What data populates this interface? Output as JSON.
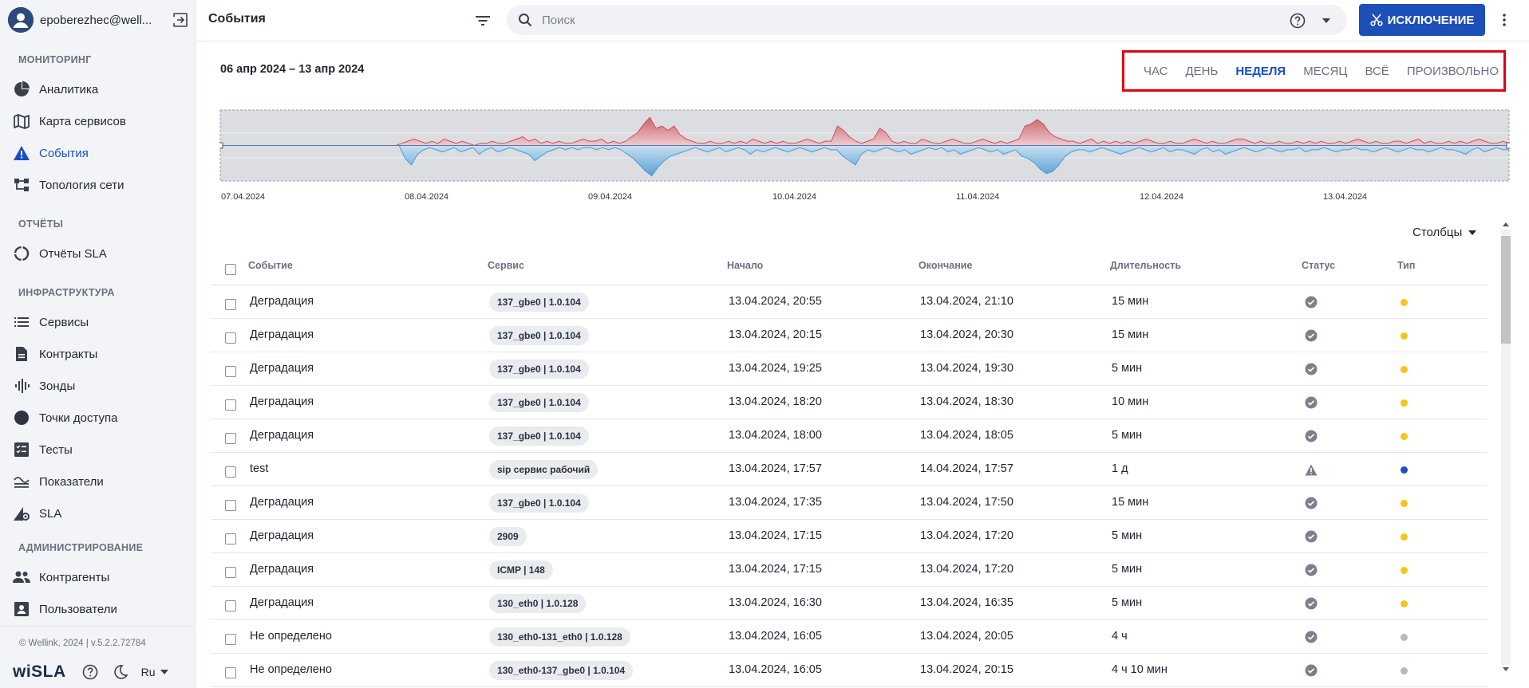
{
  "user": {
    "name": "epoberezhec@well..."
  },
  "sidebar": {
    "sections": [
      {
        "title": "МОНИТОРИНГ"
      },
      {
        "title": "ОТЧЁТЫ"
      },
      {
        "title": "ИНФРАСТРУКТУРА"
      },
      {
        "title": "АДМИНИСТРИРОВАНИЕ"
      }
    ],
    "items": [
      {
        "label": "Аналитика",
        "icon": "pie-chart-icon"
      },
      {
        "label": "Карта сервисов",
        "icon": "map-icon"
      },
      {
        "label": "События",
        "icon": "warning-icon",
        "active": true
      },
      {
        "label": "Топология сети",
        "icon": "topology-icon"
      },
      {
        "label": "Отчёты SLA",
        "icon": "report-circle-icon"
      },
      {
        "label": "Сервисы",
        "icon": "list-icon"
      },
      {
        "label": "Контракты",
        "icon": "document-icon"
      },
      {
        "label": "Зонды",
        "icon": "probe-icon"
      },
      {
        "label": "Точки доступа",
        "icon": "access-point-icon"
      },
      {
        "label": "Тесты",
        "icon": "checklist-icon"
      },
      {
        "label": "Показатели",
        "icon": "metrics-icon"
      },
      {
        "label": "SLA",
        "icon": "sla-icon"
      },
      {
        "label": "Контрагенты",
        "icon": "people-icon"
      },
      {
        "label": "Пользователи",
        "icon": "contact-icon"
      }
    ],
    "copyright": "© Wellink, 2024 | v.5.2.2.72784",
    "logo": "wiSLA",
    "language": "Ru"
  },
  "header": {
    "title": "События",
    "search_placeholder": "Поиск",
    "exclusion_label": "ИСКЛЮЧЕНИЕ"
  },
  "date_range": "06 апр 2024 – 13 апр 2024",
  "periods": [
    "ЧАС",
    "ДЕНЬ",
    "НЕДЕЛЯ",
    "МЕСЯЦ",
    "ВСЁ",
    "ПРОИЗВОЛЬНО"
  ],
  "active_period": "НЕДЕЛЯ",
  "chart_data": {
    "type": "area",
    "x_ticks": [
      "07.04.2024",
      "08.04.2024",
      "09.04.2024",
      "10.04.2024",
      "11.04.2024",
      "12.04.2024",
      "13.04.2024"
    ],
    "series": [
      {
        "color": "#c8505a",
        "values": [
          0,
          0,
          0,
          0,
          0,
          0,
          0,
          0,
          0,
          0,
          0,
          0,
          0,
          0,
          0,
          0,
          0,
          0,
          0,
          0,
          0,
          0,
          0,
          0,
          0,
          0,
          0,
          0,
          0,
          0,
          1,
          2,
          3,
          2,
          1,
          2,
          1,
          3,
          2,
          1,
          2,
          1,
          0,
          1,
          1,
          2,
          1,
          1,
          2,
          3,
          4,
          2,
          3,
          1,
          2,
          1,
          2,
          1,
          1,
          2,
          3,
          2,
          2,
          3,
          1,
          2,
          1,
          2,
          4,
          6,
          10,
          13,
          8,
          9,
          7,
          9,
          5,
          3,
          2,
          1,
          1,
          2,
          1,
          1,
          2,
          1,
          2,
          1,
          3,
          2,
          1,
          2,
          1,
          2,
          1,
          1,
          2,
          3,
          2,
          1,
          2,
          2,
          9,
          7,
          4,
          2,
          1,
          2,
          3,
          8,
          6,
          2,
          1,
          2,
          1,
          1,
          3,
          2,
          1,
          1,
          2,
          3,
          2,
          1,
          1,
          2,
          3,
          2,
          1,
          2,
          1,
          2,
          3,
          9,
          10,
          12,
          10,
          6,
          4,
          3,
          2,
          2,
          1,
          2,
          3,
          1,
          2,
          1,
          2,
          1,
          2,
          1,
          2,
          3,
          2,
          1,
          1,
          2,
          1,
          1,
          2,
          3,
          2,
          1,
          2,
          1,
          1,
          2,
          3,
          3,
          2,
          1,
          2,
          1,
          1,
          2,
          1,
          1,
          2,
          1,
          2,
          1,
          2,
          1,
          1,
          2,
          1,
          2,
          3,
          2,
          1,
          2,
          1,
          1,
          2,
          2,
          1,
          2,
          3,
          1,
          2,
          1,
          1,
          2,
          1,
          2,
          1,
          2,
          3,
          2,
          1,
          1,
          2,
          1
        ]
      },
      {
        "color": "#4a9ad4",
        "values": [
          0,
          0,
          0,
          0,
          0,
          0,
          0,
          0,
          0,
          0,
          0,
          0,
          0,
          0,
          0,
          0,
          0,
          0,
          0,
          0,
          0,
          0,
          0,
          0,
          0,
          0,
          0,
          0,
          0,
          0,
          6,
          9,
          4,
          2,
          1,
          2,
          3,
          2,
          1,
          3,
          2,
          1,
          4,
          2,
          1,
          3,
          2,
          1,
          2,
          3,
          4,
          7,
          5,
          3,
          2,
          1,
          2,
          1,
          2,
          1,
          1,
          2,
          1,
          2,
          1,
          2,
          4,
          6,
          9,
          12,
          14,
          10,
          7,
          5,
          4,
          3,
          2,
          1,
          2,
          3,
          2,
          1,
          3,
          2,
          1,
          2,
          4,
          2,
          3,
          2,
          1,
          2,
          3,
          2,
          1,
          2,
          3,
          2,
          1,
          2,
          2,
          5,
          7,
          9,
          4,
          2,
          3,
          2,
          1,
          2,
          3,
          2,
          4,
          3,
          2,
          1,
          2,
          1,
          3,
          2,
          4,
          3,
          2,
          1,
          2,
          3,
          2,
          4,
          3,
          2,
          5,
          6,
          8,
          11,
          13,
          12,
          9,
          5,
          3,
          2,
          2,
          3,
          2,
          1,
          2,
          3,
          4,
          3,
          2,
          1,
          2,
          3,
          2,
          1,
          3,
          2,
          2,
          3,
          4,
          2,
          1,
          3,
          2,
          4,
          3,
          2,
          1,
          2,
          3,
          2,
          1,
          2,
          3,
          2,
          2,
          1,
          3,
          2,
          2,
          1,
          2,
          3,
          2,
          2,
          1,
          2,
          2,
          3,
          2,
          1,
          2,
          3,
          2,
          1,
          2,
          2,
          3,
          2,
          1,
          2,
          2,
          3,
          4,
          2,
          1,
          3,
          2,
          1,
          2,
          2
        ]
      }
    ]
  },
  "table": {
    "columns_label": "Столбцы",
    "headers": [
      "Событие",
      "Сервис",
      "Начало",
      "Окончание",
      "Длительность",
      "Статус",
      "Тип"
    ],
    "rows": [
      {
        "event": "Деградация",
        "service": "137_gbe0 | 1.0.104",
        "start": "13.04.2024, 20:55",
        "end": "13.04.2024, 21:10",
        "duration": "15 мин",
        "status": "check-circle-icon",
        "type_color": "#f5c518"
      },
      {
        "event": "Деградация",
        "service": "137_gbe0 | 1.0.104",
        "start": "13.04.2024, 20:15",
        "end": "13.04.2024, 20:30",
        "duration": "15 мин",
        "status": "check-circle-icon",
        "type_color": "#f5c518"
      },
      {
        "event": "Деградация",
        "service": "137_gbe0 | 1.0.104",
        "start": "13.04.2024, 19:25",
        "end": "13.04.2024, 19:30",
        "duration": "5 мин",
        "status": "check-circle-icon",
        "type_color": "#f5c518"
      },
      {
        "event": "Деградация",
        "service": "137_gbe0 | 1.0.104",
        "start": "13.04.2024, 18:20",
        "end": "13.04.2024, 18:30",
        "duration": "10 мин",
        "status": "check-circle-icon",
        "type_color": "#f5c518"
      },
      {
        "event": "Деградация",
        "service": "137_gbe0 | 1.0.104",
        "start": "13.04.2024, 18:00",
        "end": "13.04.2024, 18:05",
        "duration": "5 мин",
        "status": "check-circle-icon",
        "type_color": "#f5c518"
      },
      {
        "event": "test",
        "service": "sip сервис рабочий",
        "start": "13.04.2024, 17:57",
        "end": "14.04.2024, 17:57",
        "duration": "1 д",
        "status": "warning-triangle-icon",
        "type_color": "#1d4fb8"
      },
      {
        "event": "Деградация",
        "service": "137_gbe0 | 1.0.104",
        "start": "13.04.2024, 17:35",
        "end": "13.04.2024, 17:50",
        "duration": "15 мин",
        "status": "check-circle-icon",
        "type_color": "#f5c518"
      },
      {
        "event": "Деградация",
        "service": "2909",
        "start": "13.04.2024, 17:15",
        "end": "13.04.2024, 17:20",
        "duration": "5 мин",
        "status": "check-circle-icon",
        "type_color": "#f5c518"
      },
      {
        "event": "Деградация",
        "service": "ICMP | 148",
        "start": "13.04.2024, 17:15",
        "end": "13.04.2024, 17:20",
        "duration": "5 мин",
        "status": "check-circle-icon",
        "type_color": "#f5c518"
      },
      {
        "event": "Деградация",
        "service": "130_eth0 | 1.0.128",
        "start": "13.04.2024, 16:30",
        "end": "13.04.2024, 16:35",
        "duration": "5 мин",
        "status": "check-circle-icon",
        "type_color": "#f5c518"
      },
      {
        "event": "Не определено",
        "service": "130_eth0-131_eth0 | 1.0.128",
        "start": "13.04.2024, 16:05",
        "end": "13.04.2024, 20:05",
        "duration": "4 ч",
        "status": "check-circle-icon",
        "type_color": "#b5b8c0"
      },
      {
        "event": "Не определено",
        "service": "130_eth0-137_gbe0 | 1.0.104",
        "start": "13.04.2024, 16:05",
        "end": "13.04.2024, 20:15",
        "duration": "4 ч 10 мин",
        "status": "check-circle-icon",
        "type_color": "#b5b8c0"
      }
    ]
  }
}
